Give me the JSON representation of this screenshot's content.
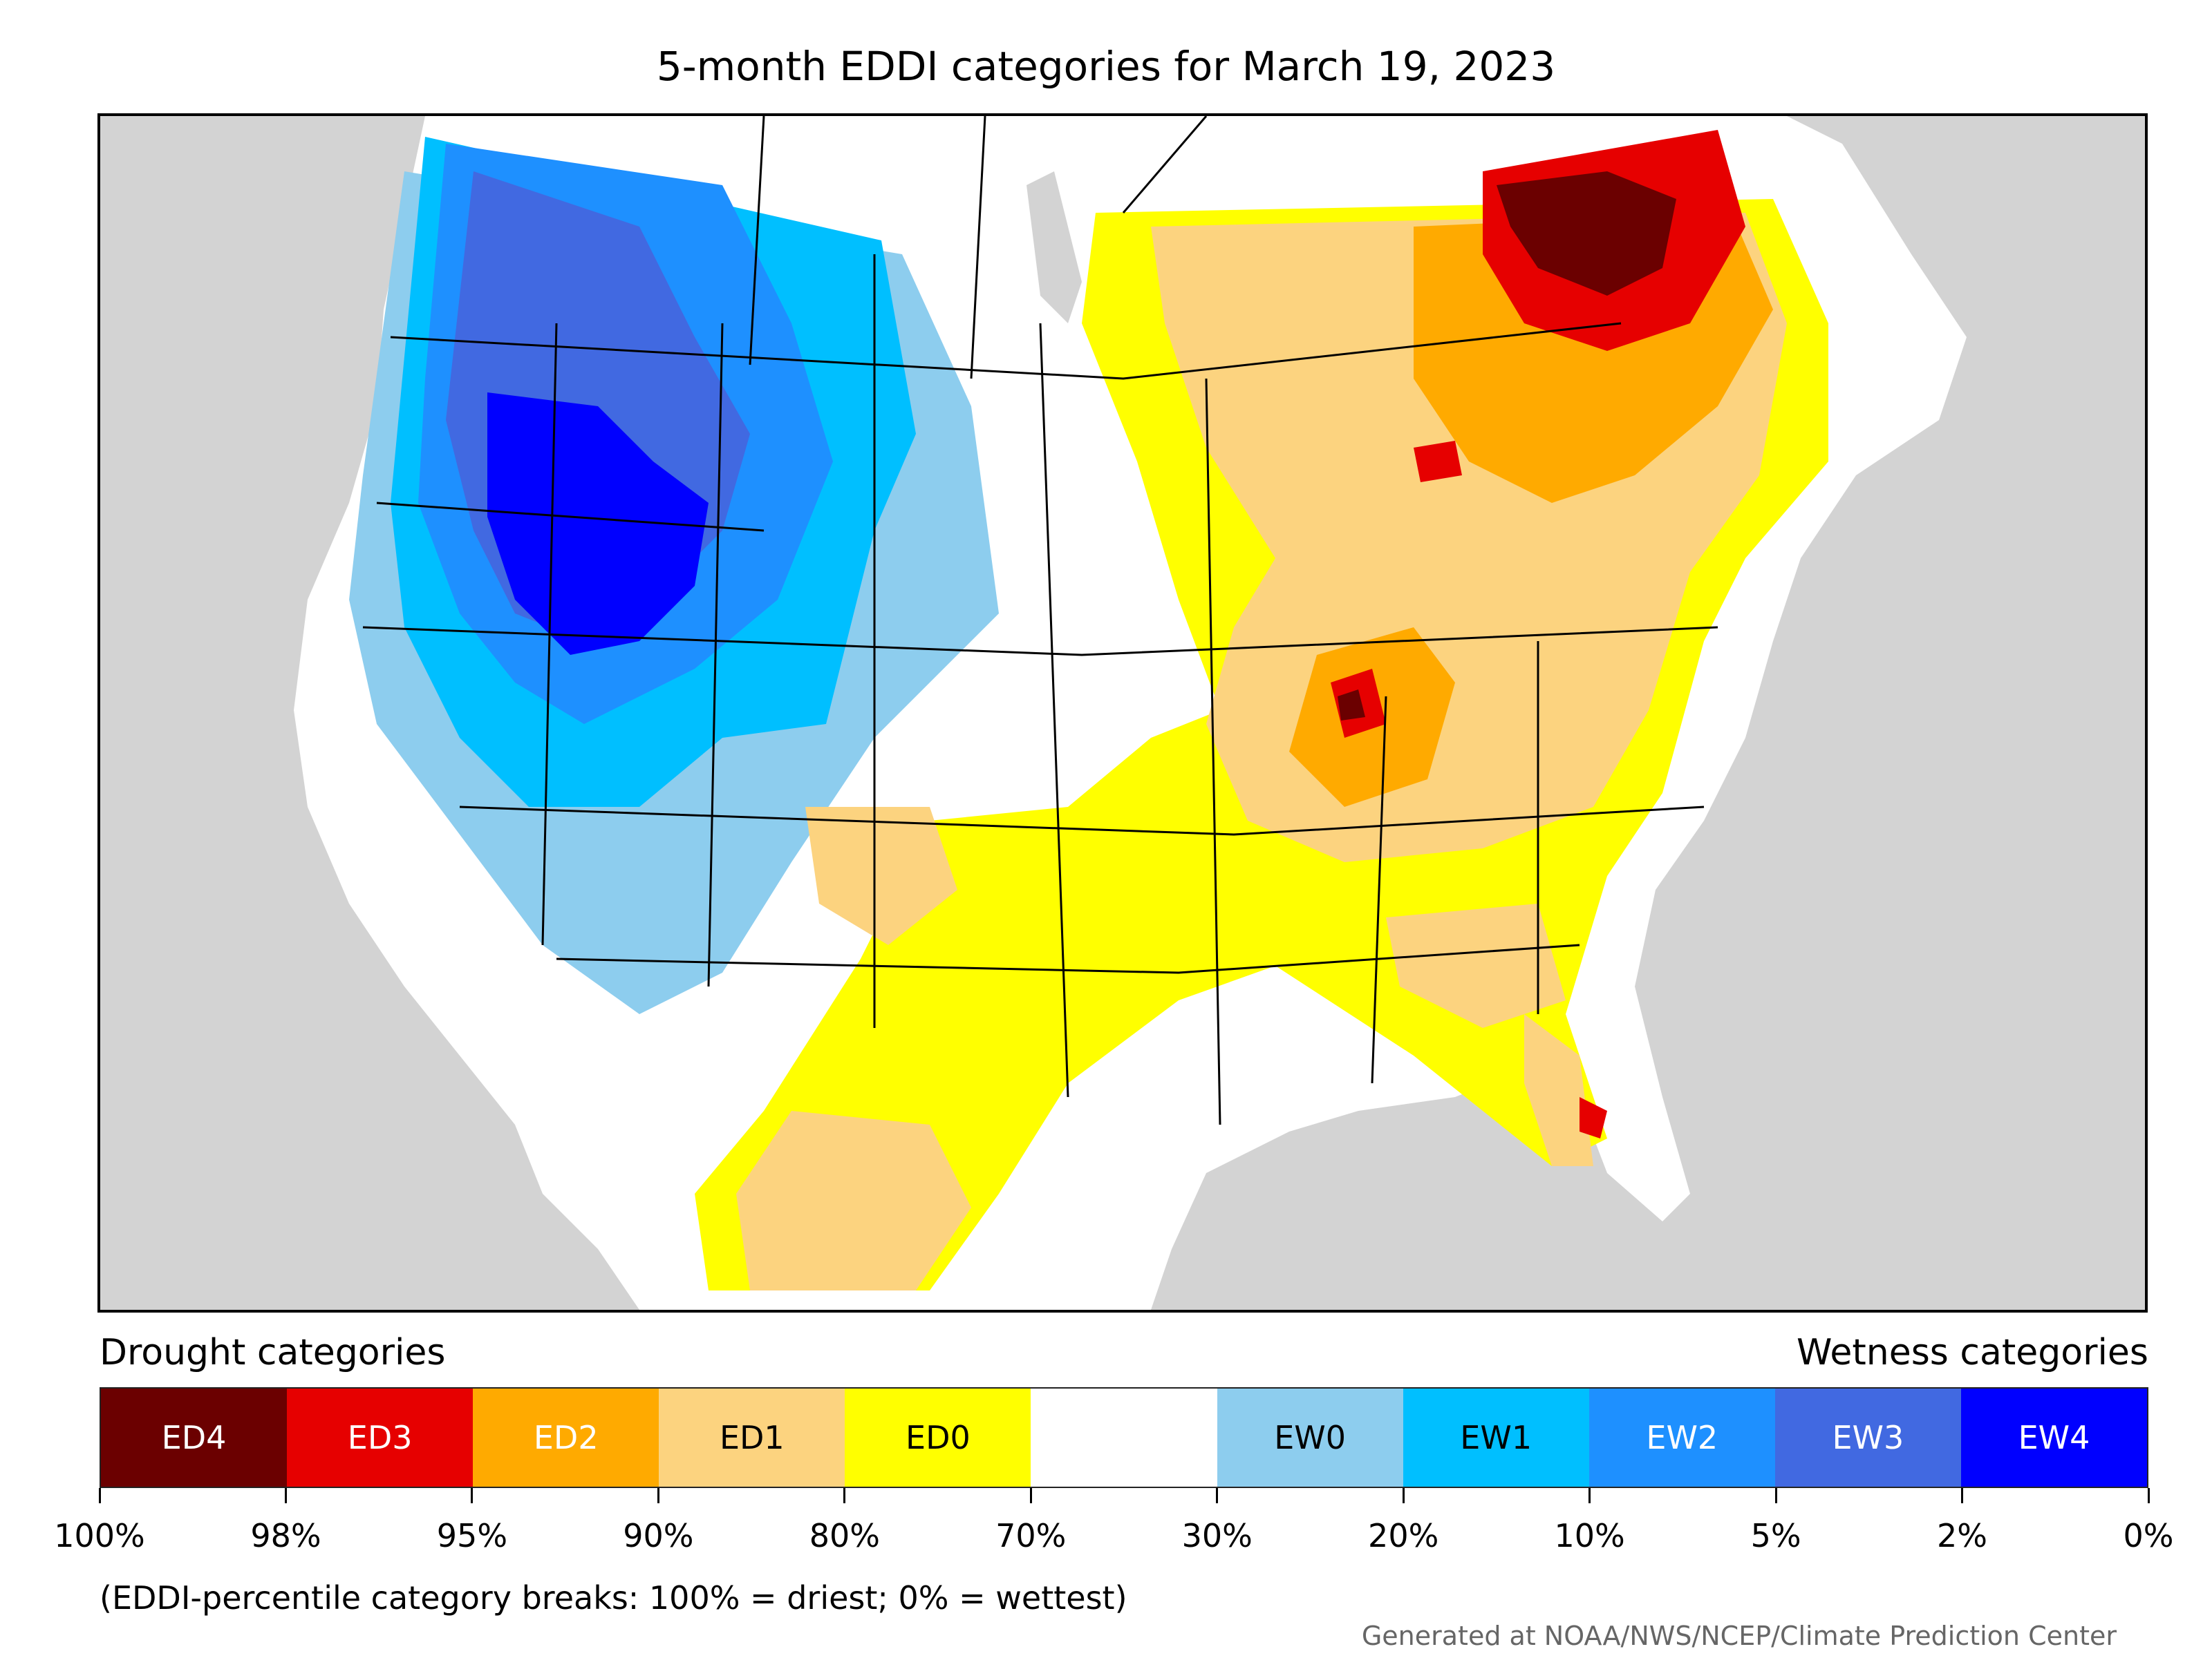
{
  "title": "5-month EDDI categories for March 19, 2023",
  "legend": {
    "drought_label": "Drought categories",
    "wetness_label": "Wetness categories",
    "categories": [
      {
        "label": "ED4",
        "color": "#6b0000",
        "text_color": "#ffffff"
      },
      {
        "label": "ED3",
        "color": "#e60000",
        "text_color": "#ffffff"
      },
      {
        "label": "ED2",
        "color": "#ffaa00",
        "text_color": "#ffffff"
      },
      {
        "label": "ED1",
        "color": "#fcd37f",
        "text_color": "#000000"
      },
      {
        "label": "ED0",
        "color": "#ffff00",
        "text_color": "#000000"
      },
      {
        "label": "",
        "color": "#ffffff",
        "text_color": "#000000"
      },
      {
        "label": "EW0",
        "color": "#8dcdee",
        "text_color": "#000000"
      },
      {
        "label": "EW1",
        "color": "#00bfff",
        "text_color": "#000000"
      },
      {
        "label": "EW2",
        "color": "#1e90ff",
        "text_color": "#ffffff"
      },
      {
        "label": "EW3",
        "color": "#4169e1",
        "text_color": "#ffffff"
      },
      {
        "label": "EW4",
        "color": "#0000ff",
        "text_color": "#ffffff"
      }
    ],
    "ticks": [
      "100%",
      "98%",
      "95%",
      "90%",
      "80%",
      "70%",
      "30%",
      "20%",
      "10%",
      "5%",
      "2%",
      "0%"
    ]
  },
  "note": "(EDDI-percentile category breaks: 100% = driest; 0% = wettest)",
  "credit": "Generated at NOAA/NWS/NCEP/Climate Prediction Center",
  "map_colors": {
    "ocean": "#d3d3d3",
    "land": "#ffffff",
    "border": "#000000"
  }
}
